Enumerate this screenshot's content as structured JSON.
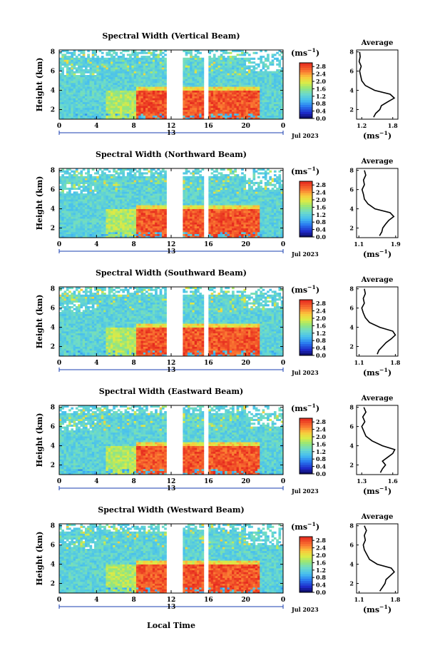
{
  "figure": {
    "local_time_label": "Local Time",
    "date_label": "Jul 2023",
    "colorbar_unit_base": "(ms",
    "colorbar_unit_exp": "−1",
    "colorbar_unit_close": ")",
    "average_title": "Average",
    "height_axis_label": "Height (km)"
  },
  "chart_data": [
    {
      "type": "heatmap",
      "title": "Spectral Width (Vertical Beam)",
      "xlabel": "",
      "ylabel": "Height (km)",
      "x_ticks": [
        "0",
        "4",
        "8",
        "12",
        "16",
        "20",
        "0"
      ],
      "date_tick": "13",
      "y_ticks": [
        "2",
        "4",
        "6",
        "8"
      ],
      "xlim": [
        0,
        24
      ],
      "ylim": [
        1,
        8.2
      ],
      "colorbar_ticks": [
        "0.0",
        "0.4",
        "0.8",
        "1.2",
        "1.6",
        "2.0",
        "2.4",
        "2.8"
      ],
      "colorbar_range": [
        0,
        3.0
      ],
      "data_gaps_hours": [
        [
          11.6,
          13.3
        ],
        [
          15.5,
          15.9
        ]
      ],
      "average_profile": {
        "title": "Average",
        "x_ticks": [
          "1.2",
          "1.8"
        ],
        "xlim": [
          1.1,
          1.9
        ],
        "y_ticks": [
          "2",
          "4",
          "6",
          "8"
        ],
        "ylim": [
          1,
          8.2
        ],
        "heights": [
          1.2,
          1.6,
          2.0,
          2.4,
          2.8,
          3.2,
          3.6,
          4.0,
          4.5,
          5.0,
          5.5,
          6.0,
          6.5,
          7.0,
          7.5,
          8.0
        ],
        "values": [
          1.43,
          1.47,
          1.55,
          1.58,
          1.7,
          1.83,
          1.75,
          1.45,
          1.27,
          1.2,
          1.18,
          1.16,
          1.19,
          1.15,
          1.17,
          1.16
        ]
      }
    },
    {
      "type": "heatmap",
      "title": "Spectral Width (Northward Beam)",
      "xlabel": "",
      "ylabel": "Height (km)",
      "x_ticks": [
        "0",
        "4",
        "8",
        "12",
        "16",
        "20",
        "0"
      ],
      "date_tick": "13",
      "y_ticks": [
        "2",
        "4",
        "6",
        "8"
      ],
      "xlim": [
        0,
        24
      ],
      "ylim": [
        1,
        8.2
      ],
      "colorbar_ticks": [
        "0.0",
        "0.4",
        "0.8",
        "1.2",
        "1.6",
        "2.0",
        "2.4",
        "2.8"
      ],
      "colorbar_range": [
        0,
        3.0
      ],
      "data_gaps_hours": [
        [
          11.6,
          13.3
        ],
        [
          15.5,
          15.9
        ]
      ],
      "average_profile": {
        "title": "Average",
        "x_ticks": [
          "1.1",
          "1.9"
        ],
        "xlim": [
          1.05,
          1.95
        ],
        "y_ticks": [
          "2",
          "4",
          "6",
          "8"
        ],
        "ylim": [
          1,
          8.2
        ],
        "heights": [
          1.2,
          1.6,
          2.0,
          2.4,
          2.8,
          3.2,
          3.6,
          4.0,
          4.5,
          5.0,
          5.5,
          6.0,
          6.5,
          7.0,
          7.5,
          8.0
        ],
        "values": [
          1.55,
          1.6,
          1.62,
          1.68,
          1.75,
          1.86,
          1.78,
          1.45,
          1.3,
          1.22,
          1.2,
          1.17,
          1.22,
          1.2,
          1.25,
          1.22
        ]
      }
    },
    {
      "type": "heatmap",
      "title": "Spectral Width (Southward Beam)",
      "xlabel": "",
      "ylabel": "Height (km)",
      "x_ticks": [
        "0",
        "4",
        "8",
        "12",
        "16",
        "20",
        "0"
      ],
      "date_tick": "13",
      "y_ticks": [
        "2",
        "4",
        "6",
        "8"
      ],
      "xlim": [
        0,
        24
      ],
      "ylim": [
        1,
        8.2
      ],
      "colorbar_ticks": [
        "0.0",
        "0.4",
        "0.8",
        "1.2",
        "1.6",
        "2.0",
        "2.4",
        "2.8"
      ],
      "colorbar_range": [
        0,
        3.0
      ],
      "data_gaps_hours": [
        [
          11.6,
          13.3
        ],
        [
          15.5,
          15.9
        ]
      ],
      "average_profile": {
        "title": "Average",
        "x_ticks": [
          "1.1",
          "1.8"
        ],
        "xlim": [
          1.05,
          1.85
        ],
        "y_ticks": [
          "2",
          "4",
          "6",
          "8"
        ],
        "ylim": [
          1,
          8.2
        ],
        "heights": [
          1.2,
          1.6,
          2.0,
          2.4,
          2.8,
          3.2,
          3.6,
          4.0,
          4.5,
          5.0,
          5.5,
          6.0,
          6.5,
          7.0,
          7.5,
          8.0
        ],
        "values": [
          1.45,
          1.48,
          1.55,
          1.62,
          1.72,
          1.8,
          1.75,
          1.5,
          1.3,
          1.22,
          1.18,
          1.15,
          1.2,
          1.18,
          1.22,
          1.2
        ]
      }
    },
    {
      "type": "heatmap",
      "title": "Spectral Width (Eastward Beam)",
      "xlabel": "",
      "ylabel": "Height (km)",
      "x_ticks": [
        "0",
        "4",
        "8",
        "12",
        "16",
        "20",
        "0"
      ],
      "date_tick": "13",
      "y_ticks": [
        "2",
        "4",
        "6",
        "8"
      ],
      "xlim": [
        0,
        24
      ],
      "ylim": [
        1,
        8.2
      ],
      "colorbar_ticks": [
        "0.0",
        "0.4",
        "0.8",
        "1.2",
        "1.6",
        "2.0",
        "2.4",
        "2.8"
      ],
      "colorbar_range": [
        0,
        3.0
      ],
      "data_gaps_hours": [
        [
          11.6,
          13.3
        ],
        [
          15.5,
          15.9
        ]
      ],
      "average_profile": {
        "title": "Average",
        "x_ticks": [
          "1.3",
          "1.6"
        ],
        "xlim": [
          1.25,
          1.65
        ],
        "y_ticks": [
          "2",
          "4",
          "6",
          "8"
        ],
        "ylim": [
          1,
          8.2
        ],
        "heights": [
          1.2,
          1.6,
          2.0,
          2.4,
          2.8,
          3.2,
          3.6,
          4.0,
          4.5,
          5.0,
          5.5,
          6.0,
          6.5,
          7.0,
          7.5,
          8.0
        ],
        "values": [
          1.48,
          1.5,
          1.53,
          1.5,
          1.55,
          1.6,
          1.62,
          1.5,
          1.4,
          1.34,
          1.32,
          1.3,
          1.33,
          1.31,
          1.34,
          1.32
        ]
      }
    },
    {
      "type": "heatmap",
      "title": "Spectral Width (Westward Beam)",
      "xlabel": "Local Time",
      "ylabel": "Height (km)",
      "x_ticks": [
        "0",
        "4",
        "8",
        "12",
        "16",
        "20",
        "0"
      ],
      "date_tick": "13",
      "y_ticks": [
        "2",
        "4",
        "6",
        "8"
      ],
      "xlim": [
        0,
        24
      ],
      "ylim": [
        1,
        8.2
      ],
      "colorbar_ticks": [
        "0.0",
        "0.4",
        "0.8",
        "1.2",
        "1.6",
        "2.0",
        "2.4",
        "2.8"
      ],
      "colorbar_range": [
        0,
        3.0
      ],
      "data_gaps_hours": [
        [
          11.6,
          13.3
        ],
        [
          15.5,
          15.9
        ]
      ],
      "average_profile": {
        "title": "Average",
        "x_ticks": [
          "1.1",
          "1.8"
        ],
        "xlim": [
          1.05,
          1.85
        ],
        "y_ticks": [
          "2",
          "4",
          "6",
          "8"
        ],
        "ylim": [
          1,
          8.2
        ],
        "heights": [
          1.2,
          1.6,
          2.0,
          2.4,
          2.8,
          3.2,
          3.6,
          4.0,
          4.5,
          5.0,
          5.5,
          6.0,
          6.5,
          7.0,
          7.5,
          8.0
        ],
        "values": [
          1.5,
          1.55,
          1.6,
          1.62,
          1.7,
          1.78,
          1.72,
          1.45,
          1.3,
          1.25,
          1.2,
          1.18,
          1.22,
          1.2,
          1.24,
          1.2
        ]
      }
    }
  ]
}
